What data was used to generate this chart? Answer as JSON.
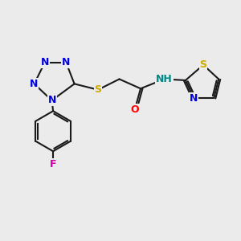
{
  "background_color": "#ebebeb",
  "fig_size": [
    3.0,
    3.0
  ],
  "dpi": 100,
  "bond_color": "#1a1a1a",
  "bond_lw": 1.5,
  "N_color": "#0000dd",
  "S_color": "#ccaa00",
  "O_color": "#ff0000",
  "F_color": "#cc00aa",
  "NH_color": "#008888",
  "font_size": 9.0,
  "xlim": [
    0.0,
    1.0
  ],
  "ylim": [
    0.0,
    1.0
  ]
}
